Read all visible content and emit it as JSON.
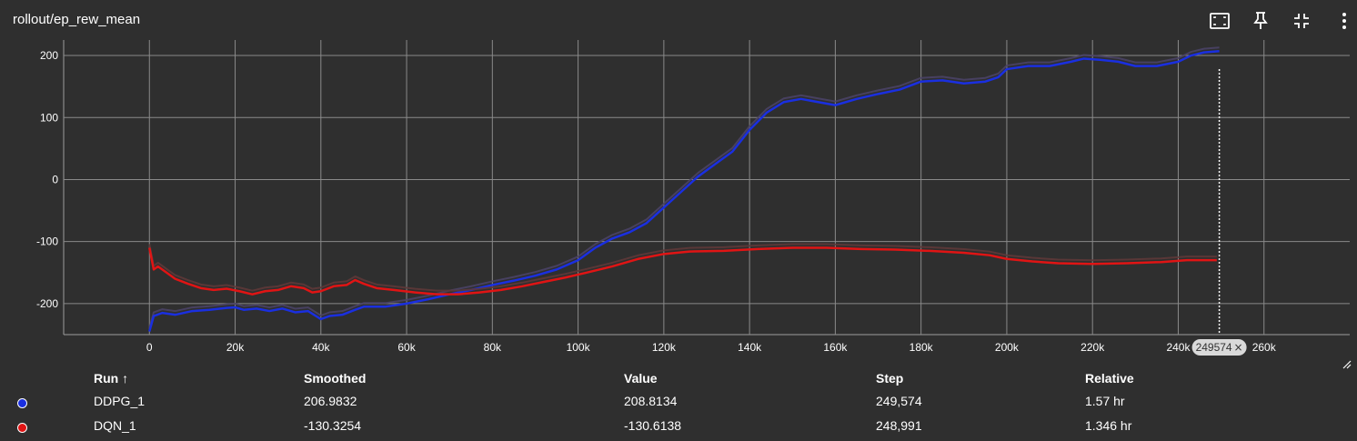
{
  "header": {
    "title": "rollout/ep_rew_mean"
  },
  "cursor": {
    "step_label": "249574",
    "step": 249574
  },
  "table": {
    "headers": {
      "run": "Run ↑",
      "smoothed": "Smoothed",
      "value": "Value",
      "step": "Step",
      "relative": "Relative"
    },
    "rows": [
      {
        "run": "DDPG_1",
        "color": "#1a2fe0",
        "smoothed": "206.9832",
        "value": "208.8134",
        "step": "249,574",
        "relative": "1.57 hr"
      },
      {
        "run": "DQN_1",
        "color": "#e01414",
        "smoothed": "-130.3254",
        "value": "-130.6138",
        "step": "248,991",
        "relative": "1.346 hr"
      }
    ]
  },
  "chart_data": {
    "type": "line",
    "title": "rollout/ep_rew_mean",
    "xlabel": "",
    "ylabel": "",
    "xlim": [
      -20000,
      280000
    ],
    "ylim": [
      -250,
      225
    ],
    "x_ticks": [
      0,
      20000,
      40000,
      60000,
      80000,
      100000,
      120000,
      140000,
      160000,
      180000,
      200000,
      220000,
      240000,
      260000
    ],
    "x_tick_labels": [
      "0",
      "20k",
      "40k",
      "60k",
      "80k",
      "100k",
      "120k",
      "140k",
      "160k",
      "180k",
      "200k",
      "220k",
      "240k",
      "260k"
    ],
    "y_ticks": [
      -200,
      -100,
      0,
      100,
      200
    ],
    "y_tick_labels": [
      "-200",
      "-100",
      "0",
      "100",
      "200"
    ],
    "grid": true,
    "series": [
      {
        "name": "DDPG_1",
        "color": "#1a2fe0",
        "raw_color": "#4a4266",
        "x": [
          0,
          1000,
          3000,
          6000,
          10000,
          14000,
          18000,
          20000,
          22000,
          25000,
          28000,
          31000,
          34000,
          37000,
          40000,
          42000,
          45000,
          48000,
          50000,
          55000,
          60000,
          65000,
          70000,
          75000,
          80000,
          85000,
          90000,
          95000,
          100000,
          104000,
          108000,
          112000,
          116000,
          120000,
          124000,
          128000,
          132000,
          136000,
          140000,
          144000,
          148000,
          152000,
          156000,
          160000,
          165000,
          170000,
          175000,
          180000,
          185000,
          190000,
          195000,
          198000,
          200000,
          205000,
          210000,
          215000,
          218000,
          222000,
          226000,
          230000,
          235000,
          240000,
          243000,
          246000,
          249574
        ],
        "values": [
          -245,
          -220,
          -215,
          -218,
          -212,
          -210,
          -207,
          -206,
          -210,
          -208,
          -212,
          -208,
          -214,
          -212,
          -225,
          -220,
          -218,
          -210,
          -205,
          -205,
          -200,
          -193,
          -185,
          -178,
          -170,
          -163,
          -155,
          -145,
          -130,
          -110,
          -95,
          -85,
          -70,
          -45,
          -20,
          5,
          25,
          45,
          80,
          108,
          125,
          130,
          125,
          120,
          130,
          138,
          145,
          158,
          160,
          155,
          158,
          165,
          178,
          183,
          183,
          190,
          195,
          193,
          190,
          183,
          183,
          190,
          200,
          205,
          207
        ]
      },
      {
        "name": "DQN_1",
        "color": "#e01414",
        "raw_color": "#5e3838",
        "x": [
          0,
          1000,
          2000,
          4000,
          6000,
          9000,
          12000,
          15000,
          18000,
          21000,
          24000,
          27000,
          30000,
          33000,
          36000,
          38000,
          40000,
          43000,
          46000,
          48000,
          50000,
          53000,
          57000,
          62000,
          67000,
          72000,
          77000,
          82000,
          87000,
          92000,
          97000,
          102000,
          108000,
          114000,
          120000,
          126000,
          134000,
          142000,
          150000,
          158000,
          166000,
          174000,
          182000,
          190000,
          196000,
          200000,
          206000,
          212000,
          220000,
          228000,
          236000,
          242000,
          248991
        ],
        "values": [
          -110,
          -145,
          -140,
          -150,
          -160,
          -168,
          -175,
          -178,
          -176,
          -180,
          -185,
          -180,
          -178,
          -172,
          -175,
          -182,
          -180,
          -172,
          -170,
          -162,
          -168,
          -175,
          -178,
          -182,
          -185,
          -185,
          -182,
          -178,
          -172,
          -165,
          -158,
          -150,
          -140,
          -128,
          -120,
          -116,
          -115,
          -112,
          -110,
          -110,
          -112,
          -113,
          -115,
          -118,
          -122,
          -128,
          -132,
          -135,
          -136,
          -135,
          -133,
          -130,
          -130
        ]
      }
    ]
  }
}
